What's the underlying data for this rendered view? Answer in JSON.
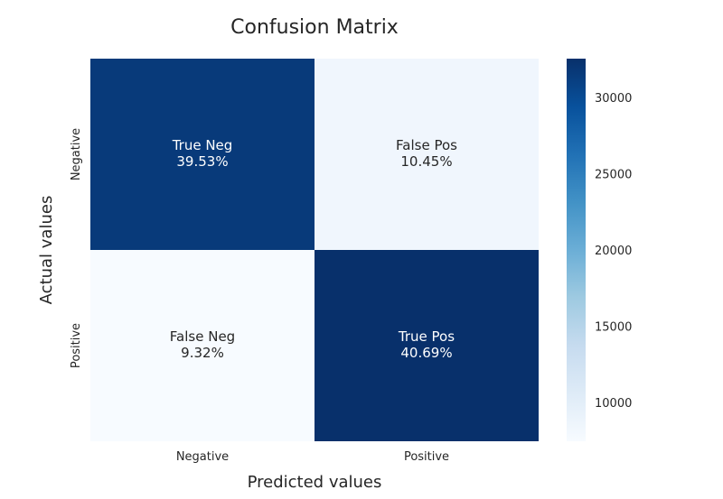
{
  "chart_data": {
    "type": "heatmap",
    "title": "Confusion Matrix",
    "xlabel": "Predicted values",
    "ylabel": "Actual values",
    "x_categories": [
      "Negative",
      "Positive"
    ],
    "y_categories": [
      "Negative",
      "Positive"
    ],
    "cells": [
      {
        "row": 0,
        "col": 0,
        "label": "True Neg",
        "percent": "39.53%",
        "value": 31600,
        "text_color": "#ffffff"
      },
      {
        "row": 0,
        "col": 1,
        "label": "False Pos",
        "percent": "10.45%",
        "value": 8350,
        "text_color": "#262626"
      },
      {
        "row": 1,
        "col": 0,
        "label": "False Neg",
        "percent": "9.32%",
        "value": 7450,
        "text_color": "#262626"
      },
      {
        "row": 1,
        "col": 1,
        "label": "True Pos",
        "percent": "40.69%",
        "value": 32530,
        "text_color": "#ffffff"
      }
    ],
    "colorbar": {
      "colormap": "Blues",
      "range": [
        7450,
        32530
      ],
      "ticks": [
        10000,
        15000,
        20000,
        25000,
        30000
      ]
    },
    "grid": false
  }
}
